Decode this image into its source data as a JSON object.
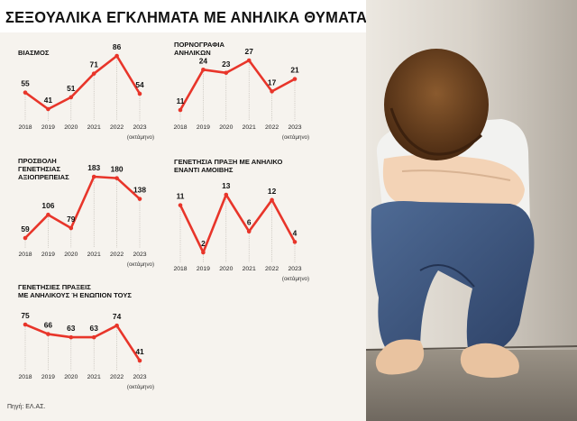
{
  "title": "ΣΕΞΟΥΑΛΙΚΑ ΕΓΚΛΗΜΑΤΑ ΜΕ ΑΝΗΛΙΚΑ ΘΥΜΑΤΑ",
  "source": "Πηγή: ΕΛ.ΑΣ.",
  "colors": {
    "line": "#e8352a",
    "text": "#111111",
    "panel": "#f6f3ee"
  },
  "chart_data": [
    {
      "type": "line",
      "title_lines": [
        "ΒΙΑΣΜΟΣ"
      ],
      "categories": [
        "2018",
        "2019",
        "2020",
        "2021",
        "2022",
        "2023"
      ],
      "values": [
        55,
        41,
        51,
        71,
        86,
        54
      ],
      "note": "(οκτάμηνο)"
    },
    {
      "type": "line",
      "title_lines": [
        "ΠΟΡΝΟΓΡΑΦΙΑ",
        "ΑΝΗΛΙΚΩΝ"
      ],
      "categories": [
        "2018",
        "2019",
        "2020",
        "2021",
        "2022",
        "2023"
      ],
      "values": [
        11,
        24,
        23,
        27,
        17,
        21
      ],
      "note": "(οκτάμηνο)"
    },
    {
      "type": "line",
      "title_lines": [
        "ΠΡΟΣΒΟΛΗ",
        "ΓΕΝΕΤΗΣΙΑΣ",
        "ΑΞΙΟΠΡΕΠΕΙΑΣ"
      ],
      "categories": [
        "2018",
        "2019",
        "2020",
        "2021",
        "2022",
        "2023"
      ],
      "values": [
        59,
        106,
        79,
        183,
        180,
        138
      ],
      "note": "(οκτάμηνο)"
    },
    {
      "type": "line",
      "title_lines": [
        "ΓΕΝΕΤΗΣΙΑ ΠΡΑΞΗ ΜΕ ΑΝΗΛΙΚΟ",
        "ΕΝΑΝΤΙ ΑΜΟΙΒΗΣ"
      ],
      "categories": [
        "2018",
        "2019",
        "2020",
        "2021",
        "2022",
        "2023"
      ],
      "values": [
        11,
        2,
        13,
        6,
        12,
        4
      ],
      "note": "(οκτάμηνο)"
    },
    {
      "type": "line",
      "title_lines": [
        "ΓΕΝΕΤΗΣΙΕΣ ΠΡΑΞΕΙΣ",
        "ΜΕ ΑΝΗΛΙΚΟΥΣ Ή ΕΝΩΠΙΟΝ ΤΟΥΣ"
      ],
      "categories": [
        "2018",
        "2019",
        "2020",
        "2021",
        "2022",
        "2023"
      ],
      "values": [
        75,
        66,
        63,
        63,
        74,
        41
      ],
      "note": "(οκτάμηνο)"
    }
  ]
}
